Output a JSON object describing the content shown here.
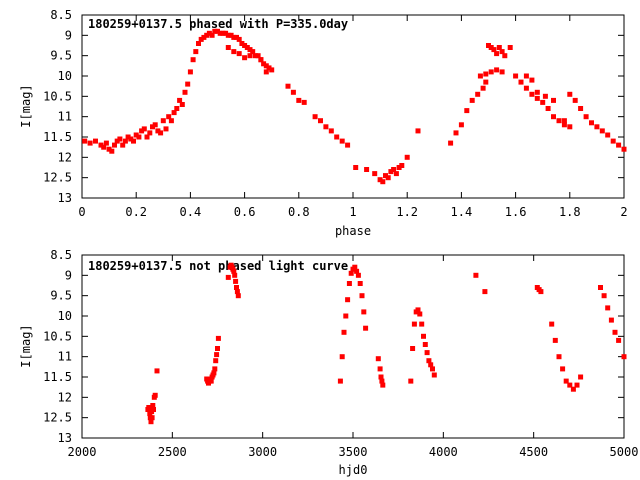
{
  "chart_data": [
    {
      "type": "scatter",
      "title": "180259+0137.5 phased with P=335.0day",
      "xlabel": "phase",
      "ylabel": "I[mag]",
      "xlim": [
        0,
        2
      ],
      "ylim": [
        8.5,
        13
      ],
      "y_inverted": true,
      "grid": false,
      "marker_color": "#ff0000",
      "xticks": [
        "0",
        "0.2",
        "0.4",
        "0.6",
        "0.8",
        "1",
        "1.2",
        "1.4",
        "1.6",
        "1.8",
        "2"
      ],
      "yticks": [
        "8.5",
        "9",
        "9.5",
        "10",
        "10.5",
        "11",
        "11.5",
        "12",
        "12.5",
        "13"
      ],
      "series": [
        {
          "x": [
            0.01,
            0.03,
            0.05,
            0.07,
            0.08,
            0.09,
            0.1,
            0.11,
            0.12,
            0.13,
            0.14,
            0.15,
            0.16,
            0.17,
            0.18,
            0.19,
            0.2,
            0.21,
            0.22,
            0.23,
            0.24,
            0.25,
            0.26,
            0.27,
            0.28,
            0.29,
            0.3,
            0.31,
            0.32,
            0.33,
            0.34,
            0.35,
            0.36,
            0.37,
            0.38,
            0.39,
            0.4,
            0.41,
            0.42,
            0.43,
            0.44,
            0.45,
            0.46,
            0.47,
            0.48,
            0.49,
            0.5,
            0.51,
            0.52,
            0.53,
            0.54,
            0.55,
            0.56,
            0.57,
            0.58,
            0.59,
            0.6,
            0.61,
            0.62,
            0.63,
            0.64,
            0.65,
            0.66,
            0.67,
            0.68,
            0.69,
            0.7,
            0.54,
            0.56,
            0.58,
            0.6,
            0.62,
            0.66,
            0.68,
            0.76,
            0.78,
            0.8,
            0.82,
            0.86,
            0.88,
            0.9,
            0.92,
            0.94,
            0.96,
            0.98,
            1.01,
            1.05,
            1.08,
            1.1,
            1.11,
            1.12,
            1.13,
            1.14,
            1.15,
            1.16,
            1.17,
            1.18,
            1.2,
            1.24,
            1.36,
            1.38,
            1.4,
            1.42,
            1.44,
            1.46,
            1.48,
            1.49,
            1.5,
            1.51,
            1.52,
            1.53,
            1.54,
            1.55,
            1.56,
            1.58,
            1.47,
            1.49,
            1.51,
            1.53,
            1.55,
            1.6,
            1.62,
            1.64,
            1.66,
            1.68,
            1.7,
            1.72,
            1.74,
            1.76,
            1.78,
            1.8,
            1.82,
            1.84,
            1.86,
            1.88,
            1.9,
            1.92,
            1.94,
            1.96,
            1.98,
            2.0,
            1.64,
            1.66,
            1.68,
            1.71,
            1.74,
            1.78,
            1.8
          ],
          "y": [
            11.6,
            11.65,
            11.6,
            11.7,
            11.75,
            11.65,
            11.8,
            11.85,
            11.7,
            11.6,
            11.55,
            11.7,
            11.6,
            11.5,
            11.55,
            11.6,
            11.45,
            11.5,
            11.35,
            11.3,
            11.5,
            11.4,
            11.25,
            11.2,
            11.35,
            11.4,
            11.1,
            11.3,
            11.0,
            11.1,
            10.9,
            10.8,
            10.6,
            10.7,
            10.4,
            10.2,
            9.9,
            9.6,
            9.4,
            9.2,
            9.1,
            9.05,
            9.0,
            8.95,
            9.0,
            8.9,
            8.9,
            8.95,
            8.95,
            8.95,
            9.0,
            9.0,
            9.05,
            9.05,
            9.1,
            9.2,
            9.25,
            9.3,
            9.35,
            9.4,
            9.5,
            9.5,
            9.6,
            9.7,
            9.75,
            9.8,
            9.85,
            9.3,
            9.4,
            9.45,
            9.55,
            9.5,
            9.6,
            9.9,
            10.25,
            10.4,
            10.6,
            10.65,
            11.0,
            11.1,
            11.25,
            11.35,
            11.5,
            11.6,
            11.7,
            12.25,
            12.3,
            12.4,
            12.55,
            12.6,
            12.45,
            12.5,
            12.35,
            12.3,
            12.4,
            12.25,
            12.2,
            12.0,
            11.35,
            11.65,
            11.4,
            11.2,
            10.85,
            10.6,
            10.45,
            10.3,
            10.15,
            9.25,
            9.3,
            9.35,
            9.45,
            9.3,
            9.4,
            9.5,
            9.3,
            10.0,
            9.95,
            9.9,
            9.85,
            9.9,
            10.0,
            10.15,
            10.3,
            10.45,
            10.55,
            10.65,
            10.8,
            11.0,
            11.1,
            11.2,
            10.45,
            10.6,
            10.8,
            11.0,
            11.15,
            11.25,
            11.35,
            11.45,
            11.6,
            11.7,
            11.8,
            10.0,
            10.1,
            10.4,
            10.5,
            10.6,
            11.1,
            11.25
          ]
        }
      ]
    },
    {
      "type": "scatter",
      "title": "180259+0137.5 not phased light curve",
      "xlabel": "hjd0",
      "ylabel": "I[mag]",
      "xlim": [
        2000,
        5000
      ],
      "ylim": [
        8.5,
        13
      ],
      "y_inverted": true,
      "grid": false,
      "marker_color": "#ff0000",
      "xticks": [
        "2000",
        "2500",
        "3000",
        "3500",
        "4000",
        "4500",
        "5000"
      ],
      "yticks": [
        "8.5",
        "9",
        "9.5",
        "10",
        "10.5",
        "11",
        "11.5",
        "12",
        "12.5",
        "13"
      ],
      "series": [
        {
          "x": [
            2365,
            2370,
            2375,
            2378,
            2382,
            2385,
            2388,
            2392,
            2396,
            2400,
            2405,
            2415,
            2690,
            2695,
            2700,
            2705,
            2710,
            2715,
            2720,
            2725,
            2730,
            2735,
            2740,
            2745,
            2750,
            2755,
            2810,
            2820,
            2825,
            2830,
            2835,
            2840,
            2845,
            2850,
            2855,
            2860,
            2865,
            3430,
            3440,
            3450,
            3460,
            3470,
            3480,
            3490,
            3500,
            3510,
            3520,
            3530,
            3540,
            3550,
            3560,
            3570,
            3640,
            3650,
            3655,
            3660,
            3665,
            3820,
            3830,
            3840,
            3850,
            3860,
            3870,
            3880,
            3890,
            3900,
            3910,
            3920,
            3930,
            3940,
            3950,
            4180,
            4230,
            4520,
            4530,
            4540,
            4600,
            4620,
            4640,
            4660,
            4680,
            4700,
            4720,
            4740,
            4760,
            4870,
            4890,
            4910,
            4930,
            4950,
            4970,
            5000
          ],
          "y": [
            12.3,
            12.25,
            12.4,
            12.5,
            12.6,
            12.35,
            12.5,
            12.2,
            12.3,
            12.0,
            11.95,
            11.35,
            11.55,
            11.6,
            11.65,
            11.6,
            11.55,
            11.6,
            11.5,
            11.45,
            11.4,
            11.3,
            11.1,
            10.95,
            10.8,
            10.55,
            9.05,
            8.8,
            8.75,
            8.8,
            8.85,
            8.9,
            9.0,
            9.15,
            9.3,
            9.4,
            9.5,
            11.6,
            11.0,
            10.4,
            10.0,
            9.6,
            9.2,
            8.95,
            8.85,
            8.8,
            8.9,
            9.0,
            9.2,
            9.5,
            9.9,
            10.3,
            11.05,
            11.3,
            11.5,
            11.6,
            11.7,
            11.6,
            10.8,
            10.2,
            9.9,
            9.85,
            9.95,
            10.2,
            10.5,
            10.7,
            10.9,
            11.1,
            11.2,
            11.3,
            11.45,
            9.0,
            9.4,
            9.3,
            9.35,
            9.4,
            10.2,
            10.6,
            11.0,
            11.3,
            11.6,
            11.7,
            11.8,
            11.7,
            11.5,
            9.3,
            9.5,
            9.8,
            10.1,
            10.4,
            10.6,
            11.0
          ]
        }
      ]
    }
  ]
}
